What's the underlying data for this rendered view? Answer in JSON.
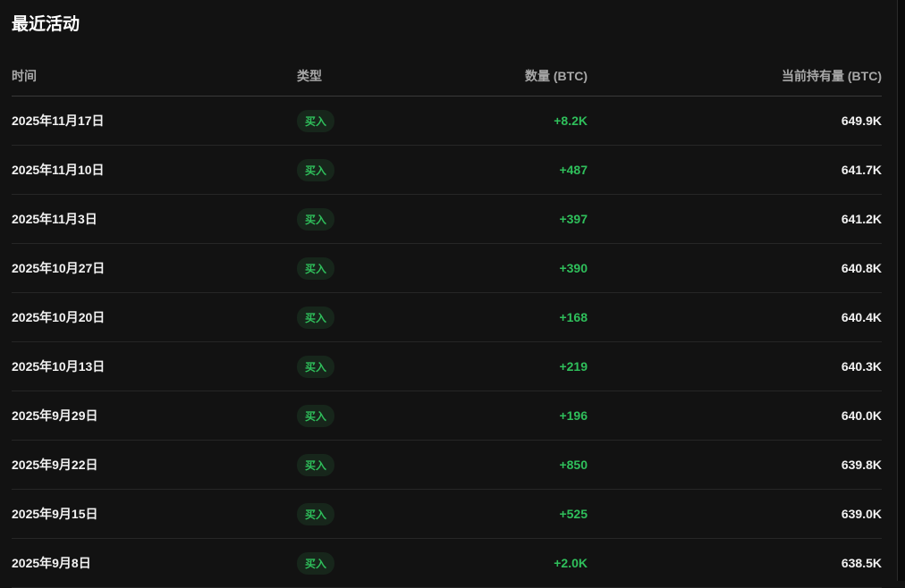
{
  "title": "最近活动",
  "columns": [
    "时间",
    "类型",
    "数量 (BTC)",
    "当前持有量 (BTC)"
  ],
  "colors": {
    "buy": "#2fbf5b",
    "background": "#121212"
  },
  "rows": [
    {
      "date": "2025年11月17日",
      "type": "买入",
      "amount": "+8.2K",
      "holding": "649.9K"
    },
    {
      "date": "2025年11月10日",
      "type": "买入",
      "amount": "+487",
      "holding": "641.7K"
    },
    {
      "date": "2025年11月3日",
      "type": "买入",
      "amount": "+397",
      "holding": "641.2K"
    },
    {
      "date": "2025年10月27日",
      "type": "买入",
      "amount": "+390",
      "holding": "640.8K"
    },
    {
      "date": "2025年10月20日",
      "type": "买入",
      "amount": "+168",
      "holding": "640.4K"
    },
    {
      "date": "2025年10月13日",
      "type": "买入",
      "amount": "+219",
      "holding": "640.3K"
    },
    {
      "date": "2025年9月29日",
      "type": "买入",
      "amount": "+196",
      "holding": "640.0K"
    },
    {
      "date": "2025年9月22日",
      "type": "买入",
      "amount": "+850",
      "holding": "639.8K"
    },
    {
      "date": "2025年9月15日",
      "type": "买入",
      "amount": "+525",
      "holding": "639.0K"
    },
    {
      "date": "2025年9月8日",
      "type": "买入",
      "amount": "+2.0K",
      "holding": "638.5K"
    }
  ]
}
